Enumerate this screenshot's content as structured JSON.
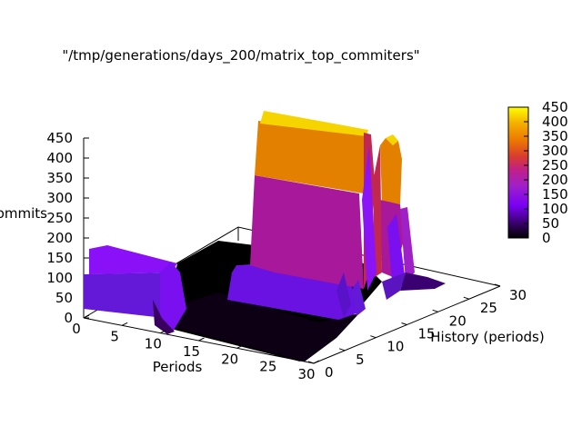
{
  "chart_data": {
    "type": "surface",
    "title": "\"/tmp/generations/days_200/matrix_top_commiters\"",
    "xlabel": "Periods",
    "ylabel": "History (periods)",
    "zlabel": "commits",
    "xlim": [
      0,
      30
    ],
    "ylim": [
      0,
      30
    ],
    "zlim": [
      0,
      450
    ],
    "x_ticks": [
      "0",
      "5",
      "10",
      "15",
      "20",
      "25",
      "30"
    ],
    "y_ticks": [
      "0",
      "5",
      "10",
      "15",
      "20",
      "25",
      "30"
    ],
    "z_ticks": [
      "0",
      "50",
      "100",
      "150",
      "200",
      "250",
      "300",
      "350",
      "400",
      "450"
    ],
    "colorbar": {
      "range": [
        0,
        450
      ],
      "ticks": [
        "0",
        "50",
        "100",
        "150",
        "200",
        "250",
        "300",
        "350",
        "400",
        "450"
      ],
      "palette": [
        "#000000",
        "#3b0072",
        "#7a00f5",
        "#a020c8",
        "#d02a70",
        "#e85a10",
        "#f09020",
        "#fbd000",
        "#ffff00"
      ]
    },
    "grid": false,
    "legend": "none"
  }
}
